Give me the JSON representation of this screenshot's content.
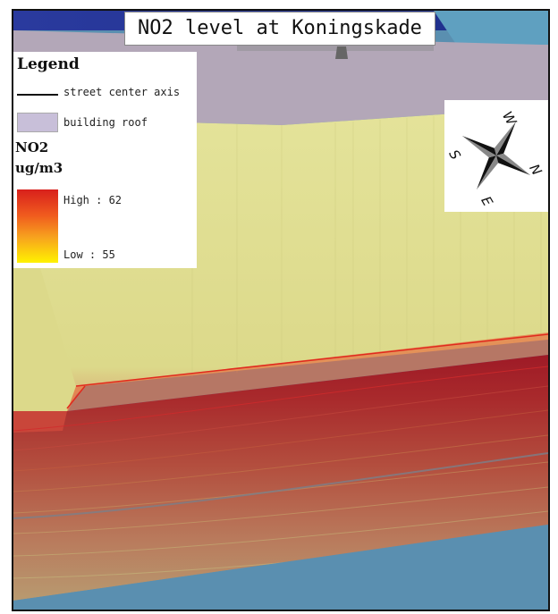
{
  "title": "NO2 level at Koningskade",
  "legend": {
    "title": "Legend",
    "street_axis_label": "street center axis",
    "roof_label": "building roof",
    "pollutant": "NO2",
    "unit": "ug/m3",
    "high_label": "High : 62",
    "low_label": "Low : 55",
    "high_value": 62,
    "low_value": 55,
    "ramp_colors": [
      "#d8201c",
      "#f05a1e",
      "#f7a21e",
      "#fff200"
    ],
    "roof_color": "#c8bfd9"
  },
  "compass": {
    "icon": "north-arrow-icon",
    "north": "N",
    "south": "S",
    "east": "E",
    "west": "W"
  },
  "colors": {
    "water": "#5a8fb0",
    "roof": "#b3a7b8",
    "wall": "#dede8c",
    "street_high": "#9c1a24"
  }
}
